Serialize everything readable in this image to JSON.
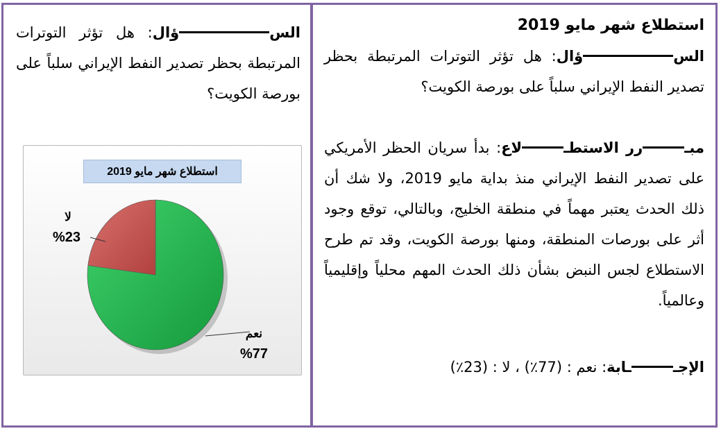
{
  "left": {
    "question_label_start": "الس",
    "question_label_end": "ؤال",
    "question_text": ": هل تؤثر التوترات المرتبطة بحظر تصدير النفط الإيراني سلباً على بورصة الكويت؟",
    "chart": {
      "title": "استطلاع شهر مايو 2019",
      "labels": {
        "no_word": "لا",
        "no_value": "%23",
        "yes_word": "نعم",
        "yes_value": "%77"
      }
    }
  },
  "right": {
    "survey_title": "استطلاع شهر مايو 2019",
    "question_label_start": "الس",
    "question_label_end": "ؤال",
    "question_text": ": هل تؤثر التوترات المرتبطة بحظر تصدير النفط الإيراني سلباً على بورصة الكويت؟",
    "justification_label_start": "مبـ",
    "justification_label_mid": "رر الاستطـ",
    "justification_label_end": "لاع",
    "justification_text": ": بدأ سريان الحظر الأمريكي على تصدير النفط الإيراني منذ بداية مايو 2019، ولا شك أن ذلك الحدث يعتبر مهماً في منطقة الخليج، وبالتالي، توقع وجود أثر على بورصات المنطقة، ومنها بورصة الكويت، وقد تم طرح الاستطلاع لجس النبض بشأن ذلك الحدث المهم محلياً وإقليمياً وعالمياً.",
    "answer_label_start": "الإجـ",
    "answer_label_end": "ـابة",
    "answer_text": ": نعم : (77٪) ، لا : (23٪)"
  },
  "colors": {
    "border": "#8064a2",
    "pie_yes": "#22b14c",
    "pie_no": "#c0504d",
    "title_box": "#c6d9f1"
  },
  "chart_data": {
    "type": "pie",
    "title": "استطلاع شهر مايو 2019",
    "categories": [
      "نعم",
      "لا"
    ],
    "values": [
      77,
      23
    ],
    "unit": "%"
  }
}
